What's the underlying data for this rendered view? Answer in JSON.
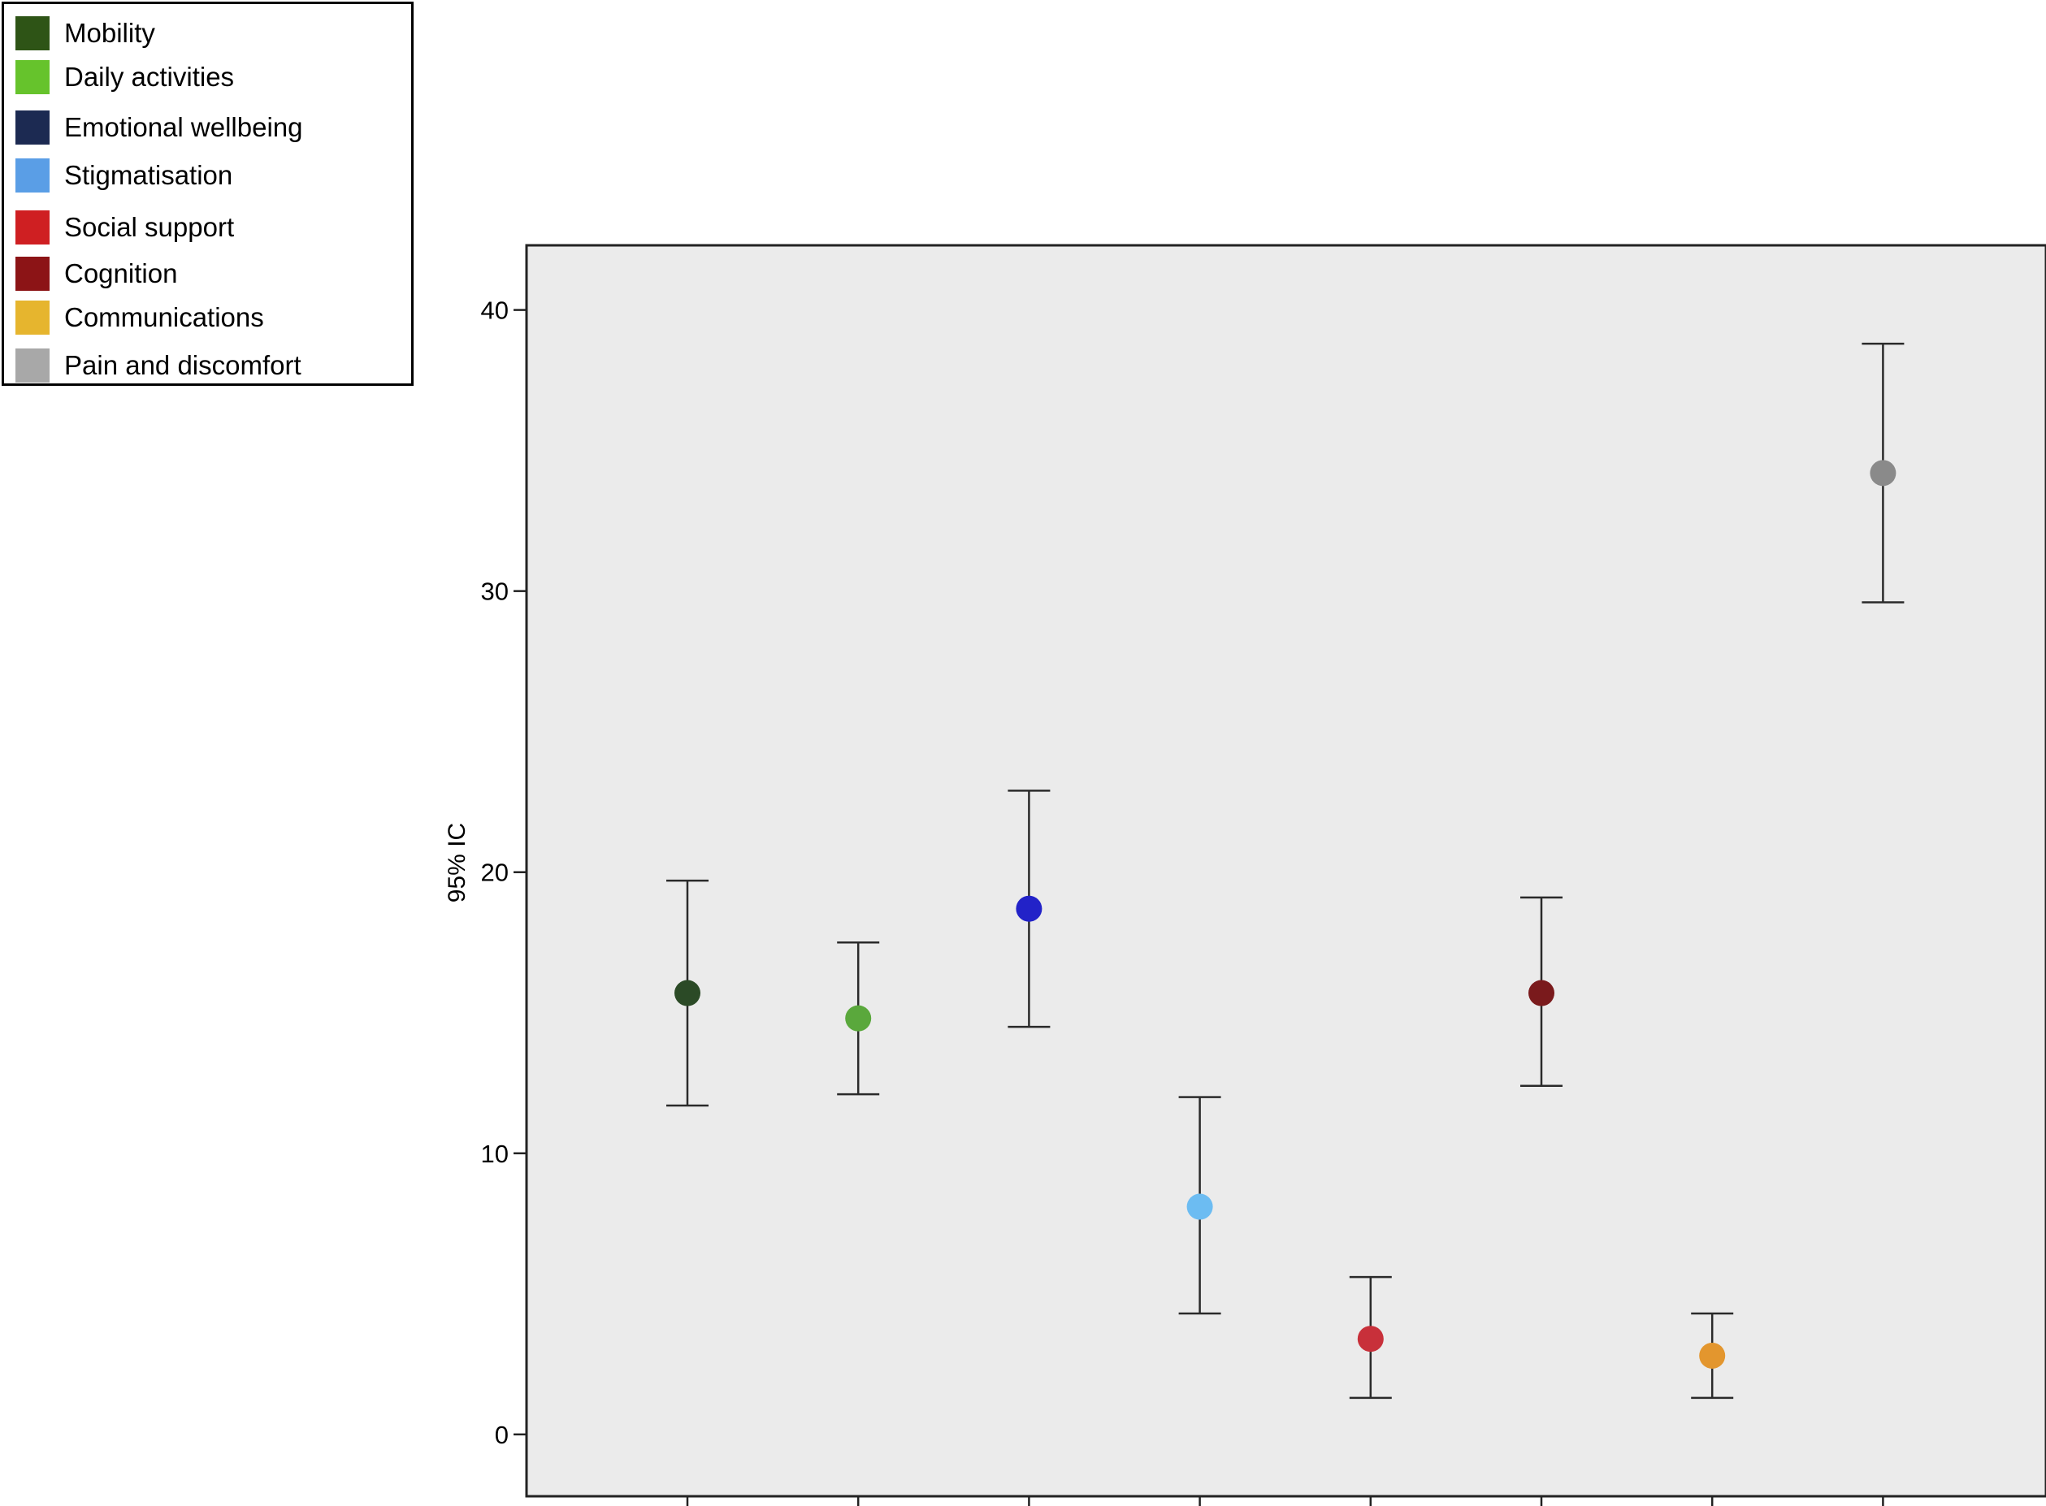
{
  "chart_data": {
    "type": "scatter",
    "title": "",
    "xlabel": "",
    "ylabel": "95% IC",
    "ylim": [
      -2.2,
      42.3
    ],
    "yticks": [
      0,
      10,
      20,
      30,
      40
    ],
    "ytick_labels": [
      "0",
      "10",
      "20",
      "30",
      "40"
    ],
    "grid": false,
    "legend_position": "top-left, outside plot",
    "legend": [
      {
        "label": "Mobility",
        "color": "#2e5416"
      },
      {
        "label": "Daily activities",
        "color": "#66c32c"
      },
      {
        "label": "Emotional wellbeing",
        "color": "#1c2a52"
      },
      {
        "label": "Stigmatisation",
        "color": "#5a9ee6"
      },
      {
        "label": "Social support",
        "color": "#cf1f22"
      },
      {
        "label": "Cognition",
        "color": "#8c1416"
      },
      {
        "label": "Communications",
        "color": "#e6b52e"
      },
      {
        "label": "Pain and discomfort",
        "color": "#a8a8a8"
      }
    ],
    "series": [
      {
        "mean": 15.7,
        "lower": 11.7,
        "upper": 19.7,
        "color": "#2b4a26"
      },
      {
        "mean": 14.8,
        "lower": 12.1,
        "upper": 17.5,
        "color": "#5aa83c"
      },
      {
        "mean": 18.7,
        "lower": 14.5,
        "upper": 22.9,
        "color": "#2222c8"
      },
      {
        "mean": 8.1,
        "lower": 4.3,
        "upper": 12.0,
        "color": "#6cbcf2"
      },
      {
        "mean": 3.4,
        "lower": 1.3,
        "upper": 5.6,
        "color": "#c8303a"
      },
      {
        "mean": 15.7,
        "lower": 12.4,
        "upper": 19.1,
        "color": "#7a1a1c"
      },
      {
        "mean": 2.8,
        "lower": 1.3,
        "upper": 4.3,
        "color": "#e3962e"
      },
      {
        "mean": 34.2,
        "lower": 29.6,
        "upper": 38.8,
        "color": "#8a8a8a"
      }
    ],
    "background_color": "#ebebeb"
  }
}
